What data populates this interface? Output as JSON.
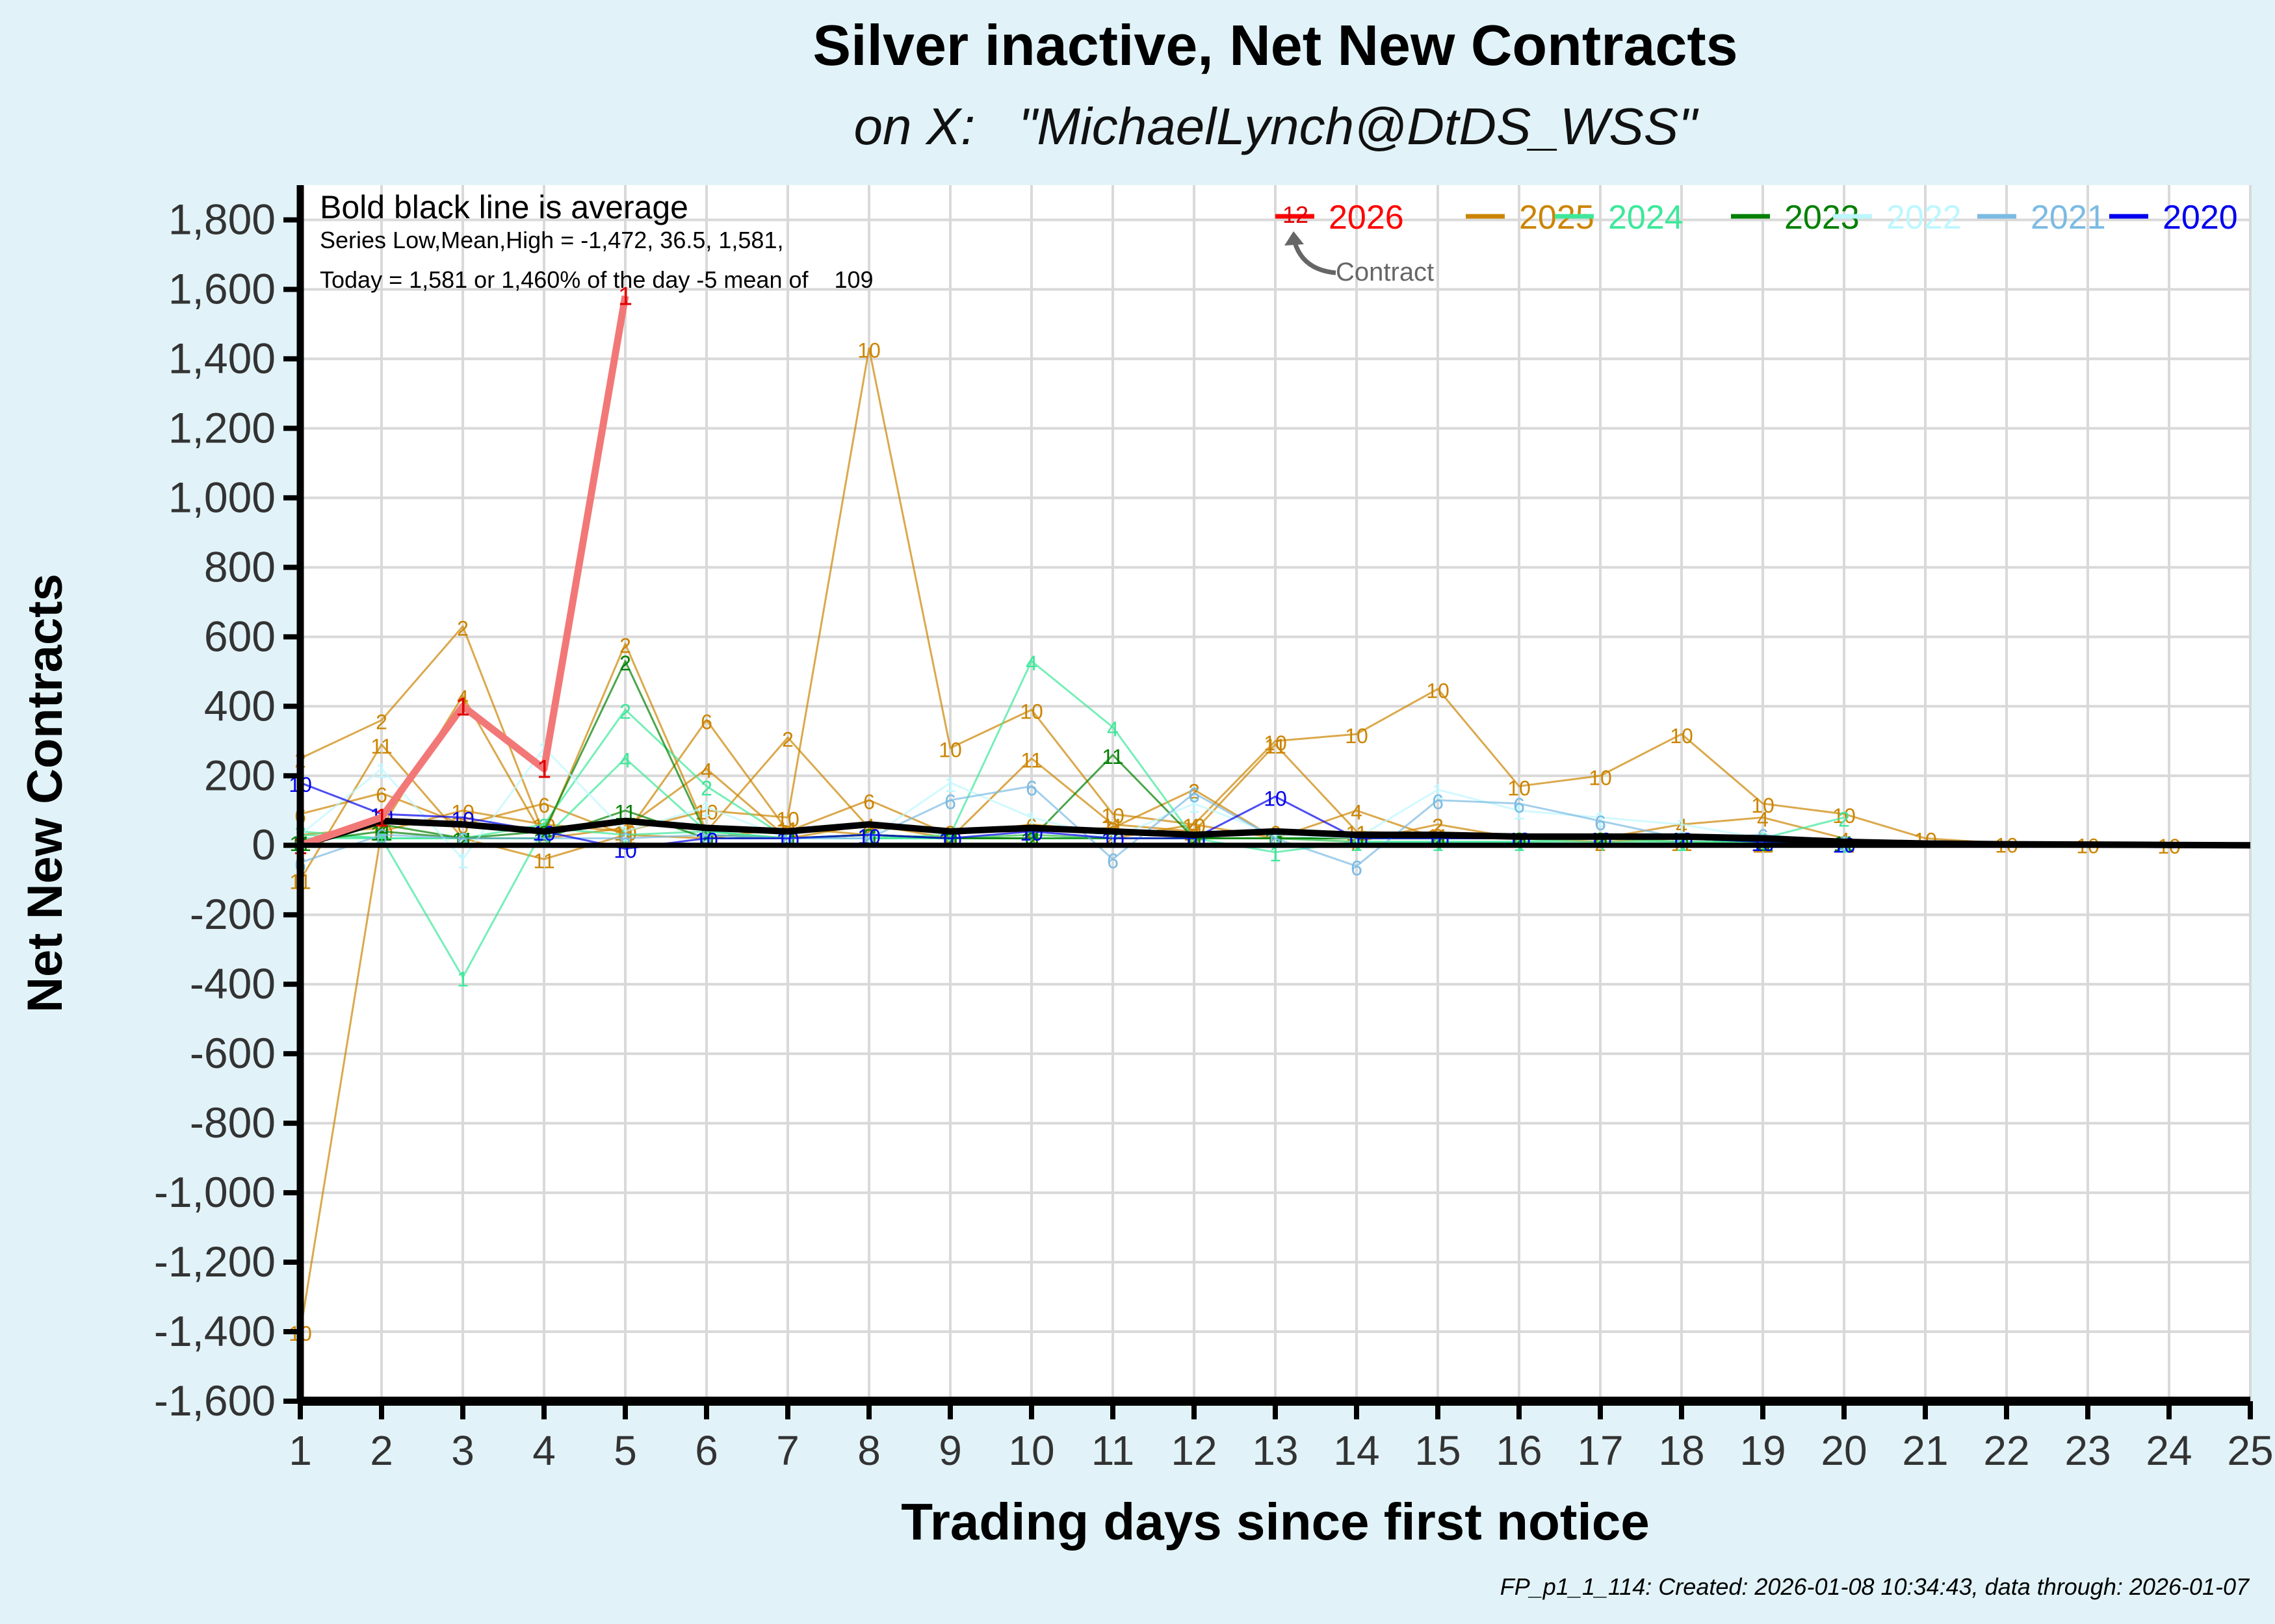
{
  "title": "Silver inactive, Net New Contracts",
  "subtitle": "on X:   \"MichaelLynch@DtDS_WSS\"",
  "footer": "FP_p1_1_114: Created: 2026-01-08 10:34:43, data through: 2026-01-07",
  "annotations": {
    "line1": "Bold black line is average",
    "line2": "Series Low,Mean,High = -1,472, 36.5, 1,581,",
    "line3": "Today = 1,581 or 1,460% of the day -5 mean of    109",
    "contract_label": "Contract",
    "contract_number": "12"
  },
  "colors": {
    "2026": "#ff0000",
    "2025": "#cc8400",
    "2024": "#3de89a",
    "2023": "#008000",
    "2022": "#bdf7ff",
    "2021": "#7bbbe3",
    "2020": "#0000ee",
    "average": "#000000",
    "background": "#e1f3f8"
  },
  "chart_data": {
    "type": "line",
    "xlabel": "Trading days since first notice",
    "ylabel": "Net New Contracts",
    "xlim": [
      1,
      25
    ],
    "ylim": [
      -1600,
      1900
    ],
    "x_ticks": [
      1,
      2,
      3,
      4,
      5,
      6,
      7,
      8,
      9,
      10,
      11,
      12,
      13,
      14,
      15,
      16,
      17,
      18,
      19,
      20,
      21,
      22,
      23,
      24,
      25
    ],
    "y_ticks": [
      -1600,
      -1400,
      -1200,
      -1000,
      -800,
      -600,
      -400,
      -200,
      0,
      200,
      400,
      600,
      800,
      1000,
      1200,
      1400,
      1600,
      1800
    ],
    "y_tick_labels": [
      "-1,600",
      "-1,400",
      "-1,200",
      "-1,000",
      "-800",
      "-600",
      "-400",
      "-200",
      "0",
      "200",
      "400",
      "600",
      "800",
      "1,000",
      "1,200",
      "1,400",
      "1,600",
      "1,800"
    ],
    "grid": true,
    "legend_position": "top-right",
    "legend": [
      "2026",
      "2025",
      "2024",
      "2023",
      "2022",
      "2021",
      "2020"
    ],
    "series": [
      {
        "name": "2026",
        "label": "1",
        "style": "highlight",
        "x": [
          1,
          2,
          3,
          4,
          5
        ],
        "y": [
          0,
          80,
          400,
          220,
          1581
        ]
      },
      {
        "name": "2025",
        "label": "10",
        "style": "thin",
        "x": [
          1,
          2,
          3,
          4,
          5,
          6,
          7,
          8,
          9,
          10,
          11,
          12,
          13,
          14,
          15,
          16,
          17,
          18,
          19,
          20,
          21,
          22,
          23,
          24
        ],
        "y": [
          -1400,
          40,
          100,
          60,
          40,
          100,
          80,
          1430,
          280,
          390,
          90,
          60,
          300,
          320,
          450,
          170,
          200,
          320,
          120,
          90,
          20,
          5,
          3,
          2
        ]
      },
      {
        "name": "2025",
        "label": "2",
        "style": "thin",
        "x": [
          1,
          2,
          3,
          4,
          5,
          6,
          7,
          8,
          9,
          10,
          11,
          12,
          13,
          14,
          15,
          16,
          17,
          18,
          19,
          20
        ],
        "y": [
          250,
          360,
          630,
          30,
          580,
          40,
          310,
          50,
          40,
          40,
          50,
          160,
          20,
          10,
          60,
          20,
          10,
          20,
          10,
          5
        ]
      },
      {
        "name": "2025",
        "label": "11",
        "style": "thin",
        "x": [
          1,
          2,
          3,
          4,
          5,
          6,
          7,
          8,
          9,
          10,
          11,
          12,
          13,
          14,
          15,
          16,
          17,
          18,
          19,
          20
        ],
        "y": [
          -100,
          290,
          20,
          -40,
          30,
          20,
          50,
          30,
          20,
          250,
          60,
          40,
          290,
          40,
          30,
          20,
          20,
          10,
          5,
          5
        ]
      },
      {
        "name": "2025",
        "label": "6",
        "style": "thin",
        "x": [
          1,
          2,
          3,
          4,
          5,
          6,
          7,
          8,
          9,
          10,
          11,
          12,
          13,
          14,
          15,
          16,
          17,
          18,
          19,
          20
        ],
        "y": [
          90,
          150,
          60,
          120,
          30,
          360,
          40,
          130,
          30,
          60,
          40,
          30,
          40,
          20,
          30,
          20,
          20,
          20,
          10,
          5
        ]
      },
      {
        "name": "2025",
        "label": "4",
        "style": "thin",
        "x": [
          1,
          2,
          3,
          4,
          5,
          6,
          7,
          8,
          9,
          10,
          11,
          12,
          13,
          14,
          15,
          16,
          17,
          18,
          19,
          20
        ],
        "y": [
          30,
          50,
          430,
          20,
          50,
          220,
          20,
          60,
          20,
          30,
          20,
          60,
          20,
          100,
          20,
          20,
          20,
          60,
          80,
          20
        ]
      },
      {
        "name": "2024",
        "label": "1",
        "style": "thin",
        "x": [
          1,
          2,
          3,
          4,
          5,
          6,
          7,
          8,
          9,
          10,
          11,
          12,
          13,
          14,
          15,
          16,
          17,
          18,
          19,
          20
        ],
        "y": [
          30,
          20,
          -380,
          50,
          30,
          40,
          20,
          20,
          20,
          30,
          20,
          20,
          -20,
          10,
          10,
          10,
          20,
          10,
          10,
          5
        ]
      },
      {
        "name": "2024",
        "label": "4",
        "style": "thin",
        "x": [
          1,
          2,
          3,
          4,
          5,
          6,
          7,
          8,
          9,
          10,
          11,
          12,
          13,
          14,
          15,
          16,
          17,
          18,
          19,
          20
        ],
        "y": [
          20,
          20,
          20,
          20,
          250,
          40,
          20,
          20,
          30,
          530,
          340,
          20,
          20,
          10,
          10,
          10,
          10,
          10,
          10,
          5
        ]
      },
      {
        "name": "2024",
        "label": "2",
        "style": "thin",
        "x": [
          1,
          2,
          3,
          4,
          5,
          6,
          7,
          8,
          9,
          10,
          11,
          12,
          13,
          14,
          15,
          16,
          17,
          18,
          19,
          20
        ],
        "y": [
          40,
          20,
          20,
          60,
          390,
          170,
          20,
          20,
          20,
          20,
          20,
          20,
          20,
          20,
          20,
          20,
          20,
          20,
          20,
          80
        ]
      },
      {
        "name": "2023",
        "label": "2",
        "style": "thin",
        "x": [
          1,
          2,
          3,
          4,
          5,
          6,
          7,
          8,
          9,
          10,
          11,
          12,
          13,
          14,
          15,
          16,
          17,
          18,
          19,
          20
        ],
        "y": [
          10,
          60,
          20,
          40,
          530,
          30,
          20,
          30,
          20,
          20,
          20,
          20,
          20,
          20,
          20,
          20,
          20,
          20,
          10,
          10
        ]
      },
      {
        "name": "2023",
        "label": "11",
        "style": "thin",
        "x": [
          1,
          2,
          3,
          4,
          5,
          6,
          7,
          8,
          9,
          10,
          11,
          12,
          13,
          14,
          15,
          16,
          17,
          18,
          19,
          20
        ],
        "y": [
          10,
          40,
          20,
          20,
          100,
          20,
          20,
          30,
          20,
          20,
          260,
          20,
          20,
          20,
          20,
          20,
          20,
          20,
          10,
          10
        ]
      },
      {
        "name": "2022",
        "label": "1",
        "style": "thin",
        "x": [
          1,
          2,
          3,
          4,
          5,
          6,
          7,
          8,
          9,
          10,
          11,
          12,
          13,
          14,
          15,
          16,
          17,
          18,
          19,
          20
        ],
        "y": [
          30,
          220,
          -40,
          280,
          40,
          110,
          20,
          20,
          180,
          80,
          20,
          120,
          30,
          20,
          160,
          100,
          80,
          60,
          20,
          10
        ]
      },
      {
        "name": "2021",
        "label": "6",
        "style": "thin",
        "x": [
          1,
          2,
          3,
          4,
          5,
          6,
          7,
          8,
          9,
          10,
          11,
          12,
          13,
          14,
          15,
          16,
          17,
          18,
          19,
          20
        ],
        "y": [
          -50,
          30,
          20,
          20,
          20,
          30,
          20,
          20,
          130,
          170,
          -40,
          150,
          20,
          -60,
          130,
          120,
          70,
          20,
          30,
          10
        ]
      },
      {
        "name": "2020",
        "label": "10",
        "style": "thin",
        "x": [
          1,
          2,
          3,
          4,
          5,
          6,
          7,
          8,
          9,
          10,
          11,
          12,
          13,
          14,
          15,
          16,
          17,
          18,
          19,
          20
        ],
        "y": [
          180,
          90,
          80,
          40,
          -10,
          20,
          20,
          30,
          20,
          40,
          20,
          20,
          140,
          20,
          20,
          20,
          20,
          20,
          10,
          5
        ]
      },
      {
        "name": "average",
        "style": "average",
        "x": [
          1,
          2,
          3,
          4,
          5,
          6,
          7,
          8,
          9,
          10,
          11,
          12,
          13,
          14,
          15,
          16,
          17,
          18,
          19,
          20,
          21,
          22,
          23,
          24,
          25
        ],
        "y": [
          0,
          70,
          60,
          40,
          70,
          50,
          40,
          60,
          40,
          50,
          40,
          30,
          40,
          30,
          30,
          25,
          25,
          25,
          20,
          10,
          5,
          3,
          2,
          1,
          0
        ]
      }
    ]
  }
}
